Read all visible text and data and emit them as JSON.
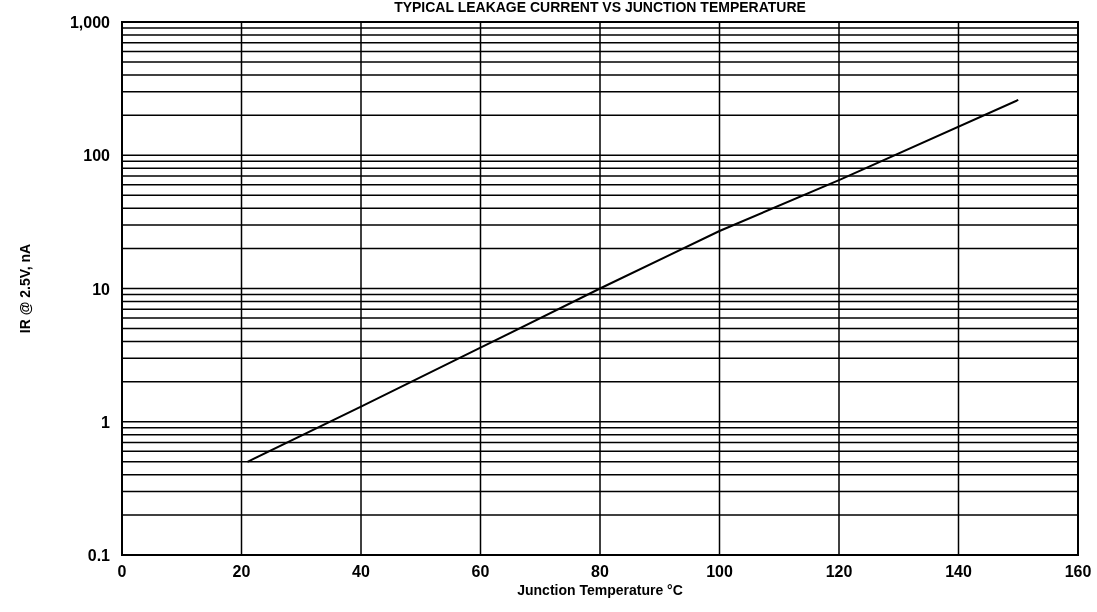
{
  "chart_data": {
    "type": "line",
    "title": "TYPICAL LEAKAGE CURRENT VS JUNCTION TEMPERATURE",
    "xlabel": "Junction Temperature °C",
    "ylabel": "IR @ 2.5V, nA",
    "x": [
      21,
      40,
      60,
      80,
      100,
      120,
      150
    ],
    "series": [
      {
        "color": "#000000",
        "values": [
          0.5,
          1.3,
          3.6,
          10,
          27,
          65,
          260
        ]
      }
    ],
    "xlim": [
      0,
      160
    ],
    "xticks": [
      0,
      20,
      40,
      60,
      80,
      100,
      120,
      140,
      160
    ],
    "ylim": [
      0.1,
      1000
    ],
    "yticks": [
      {
        "value": 0.1,
        "label": "0.1"
      },
      {
        "value": 0.2,
        "label": null
      },
      {
        "value": 0.3,
        "label": null
      },
      {
        "value": 0.4,
        "label": null
      },
      {
        "value": 0.5,
        "label": null
      },
      {
        "value": 0.6,
        "label": null
      },
      {
        "value": 0.7,
        "label": null
      },
      {
        "value": 0.8,
        "label": null
      },
      {
        "value": 0.9,
        "label": null
      },
      {
        "value": 1,
        "label": "1"
      },
      {
        "value": 2,
        "label": null
      },
      {
        "value": 3,
        "label": null
      },
      {
        "value": 4,
        "label": null
      },
      {
        "value": 5,
        "label": null
      },
      {
        "value": 6,
        "label": null
      },
      {
        "value": 7,
        "label": null
      },
      {
        "value": 8,
        "label": null
      },
      {
        "value": 9,
        "label": null
      },
      {
        "value": 10,
        "label": "10"
      },
      {
        "value": 20,
        "label": null
      },
      {
        "value": 30,
        "label": null
      },
      {
        "value": 40,
        "label": null
      },
      {
        "value": 50,
        "label": null
      },
      {
        "value": 60,
        "label": null
      },
      {
        "value": 70,
        "label": null
      },
      {
        "value": 80,
        "label": null
      },
      {
        "value": 90,
        "label": null
      },
      {
        "value": 100,
        "label": "100"
      },
      {
        "value": 200,
        "label": null
      },
      {
        "value": 300,
        "label": null
      },
      {
        "value": 400,
        "label": null
      },
      {
        "value": 500,
        "label": null
      },
      {
        "value": 600,
        "label": null
      },
      {
        "value": 700,
        "label": null
      },
      {
        "value": 800,
        "label": null
      },
      {
        "value": 900,
        "label": null
      },
      {
        "value": 1000,
        "label": "1,000"
      }
    ],
    "log": "y",
    "grid": true,
    "marker": "none",
    "line_style": "solid"
  }
}
